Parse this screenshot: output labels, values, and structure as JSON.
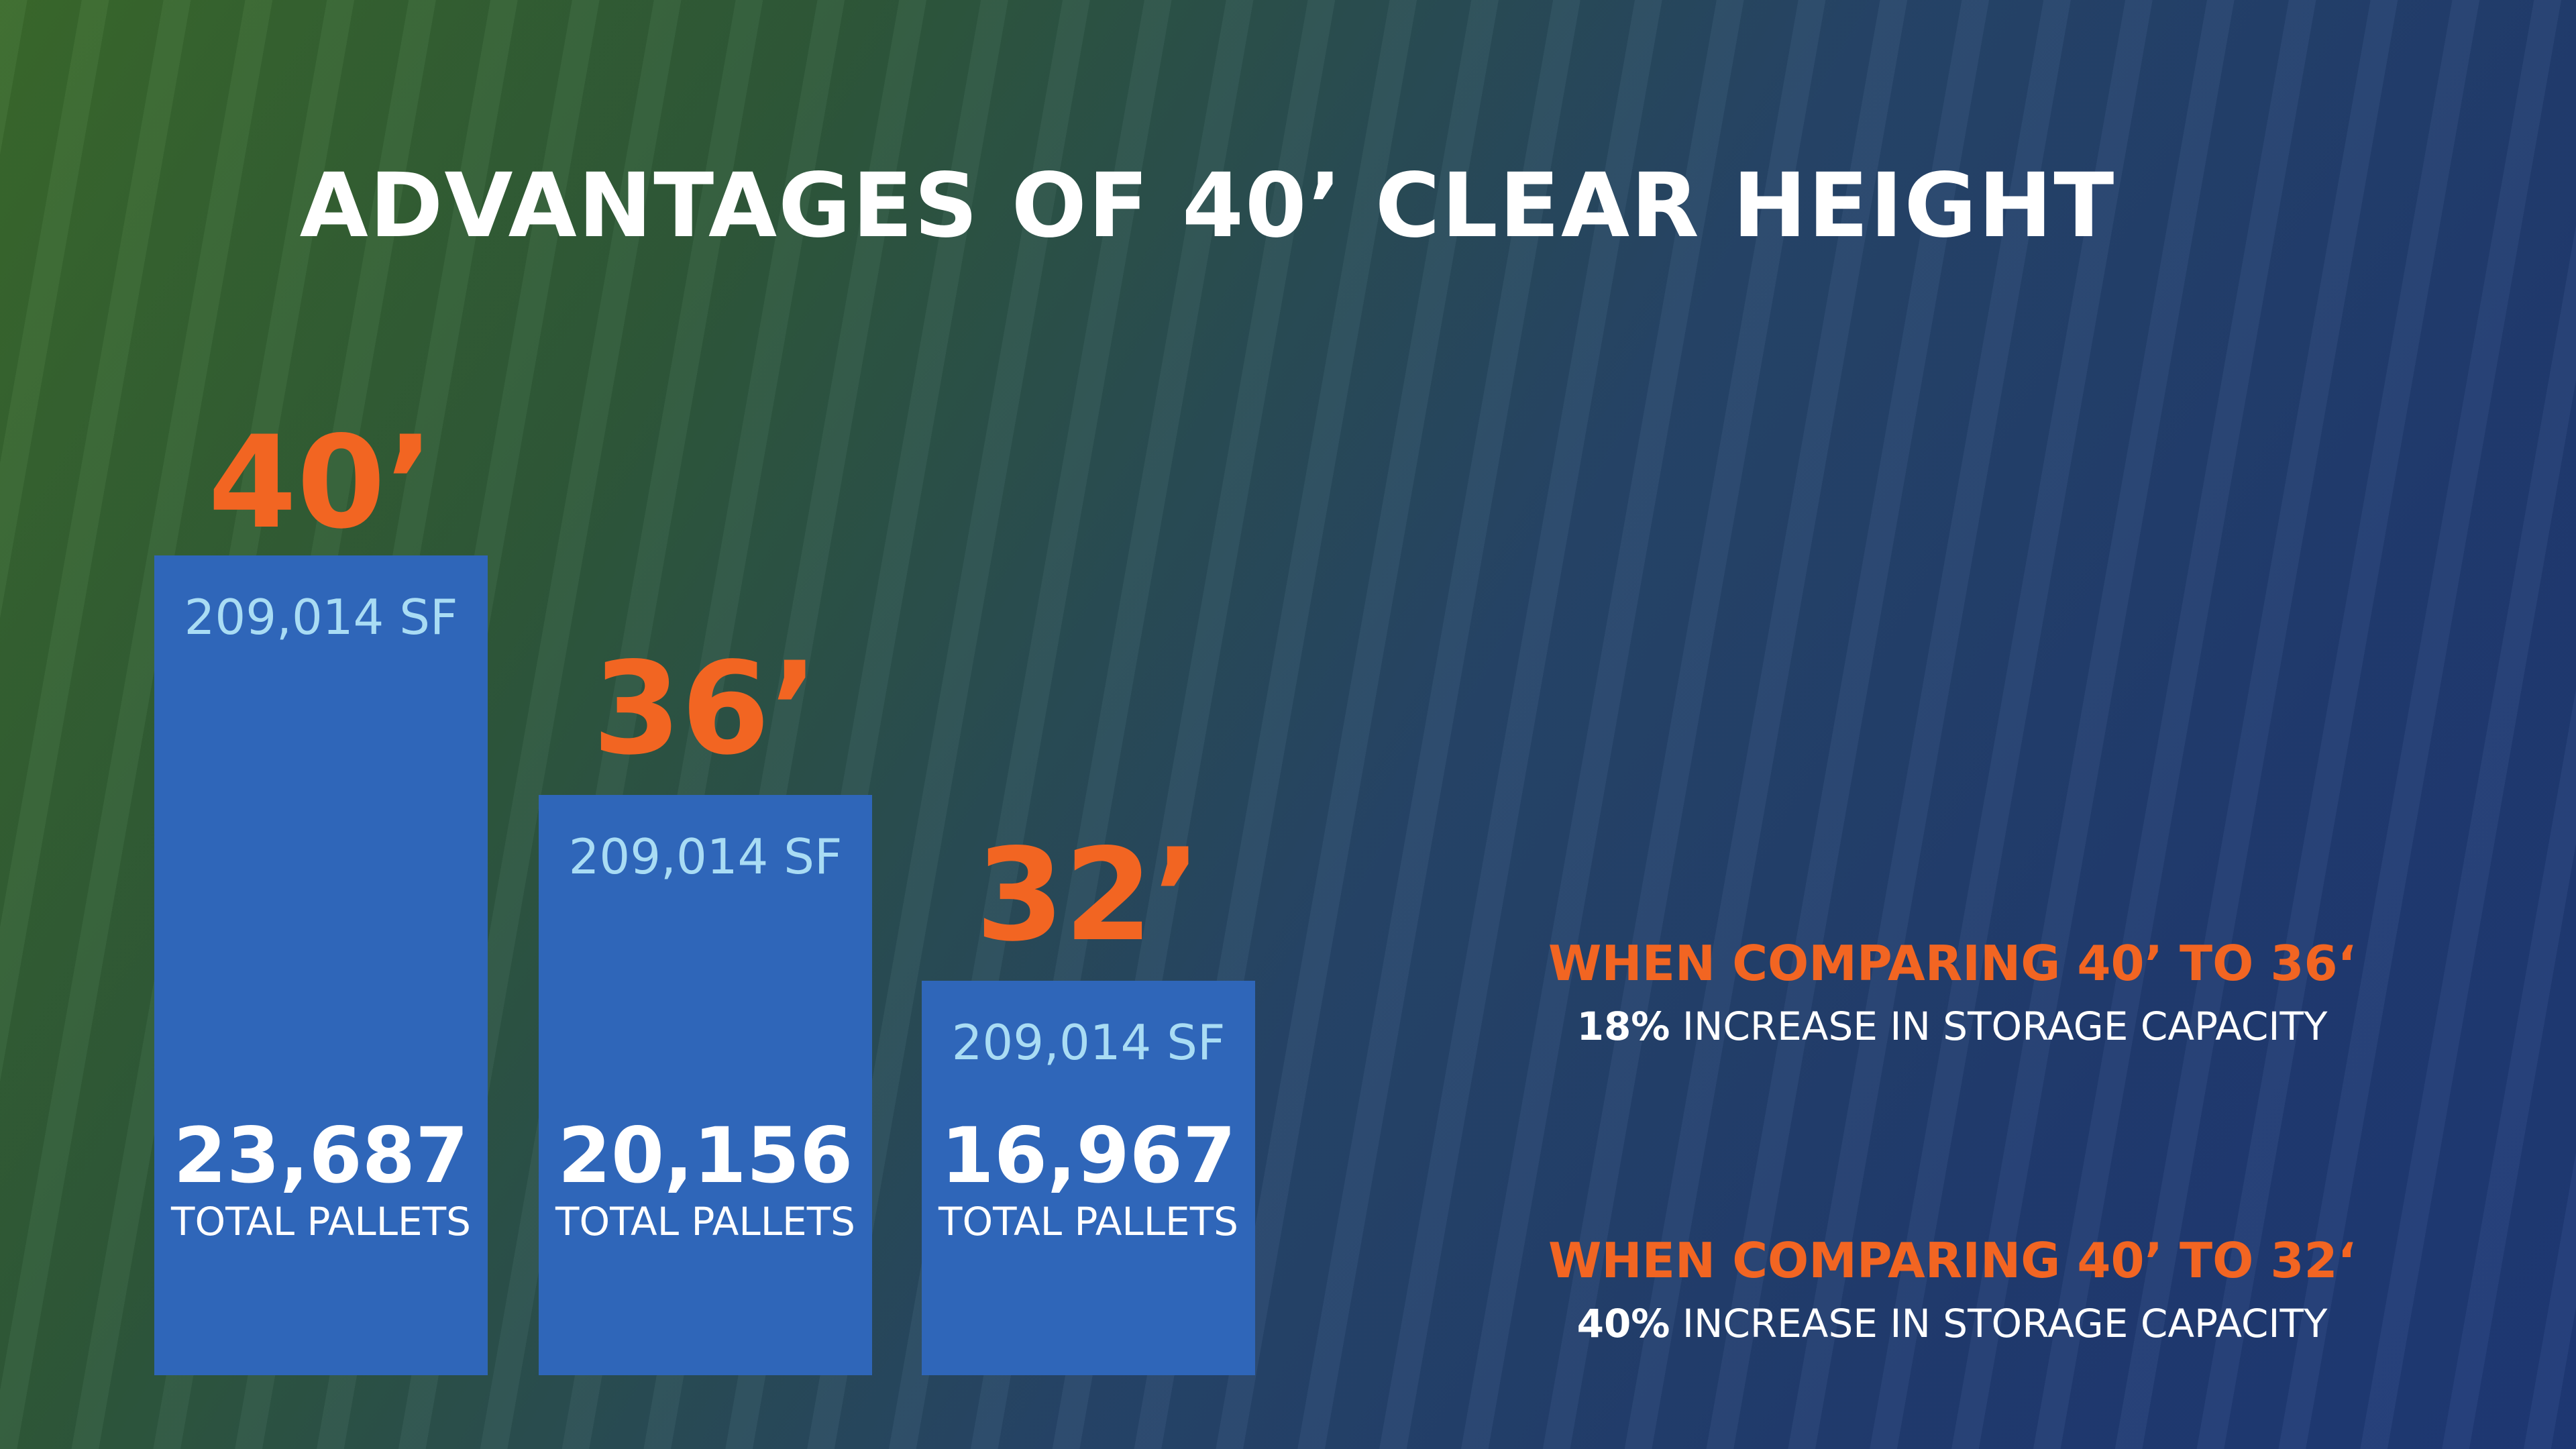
{
  "title": "ADVANTAGES OF 40’ CLEAR HEIGHT",
  "columns": [
    {
      "height": "40’",
      "area": "209,014 SF",
      "pallets": "23,687",
      "pallets_label": "TOTAL PALLETS"
    },
    {
      "height": "36’",
      "area": "209,014 SF",
      "pallets": "20,156",
      "pallets_label": "TOTAL PALLETS"
    },
    {
      "height": "32’",
      "area": "209,014 SF",
      "pallets": "16,967",
      "pallets_label": "TOTAL PALLETS"
    }
  ],
  "comparisons": [
    {
      "heading": "WHEN COMPARING 40’ TO 36‘",
      "percent": "18%",
      "text": "INCREASE IN STORAGE CAPACITY"
    },
    {
      "heading": "WHEN COMPARING 40’ TO 32‘",
      "percent": "40%",
      "text": "INCREASE IN STORAGE CAPACITY"
    }
  ]
}
